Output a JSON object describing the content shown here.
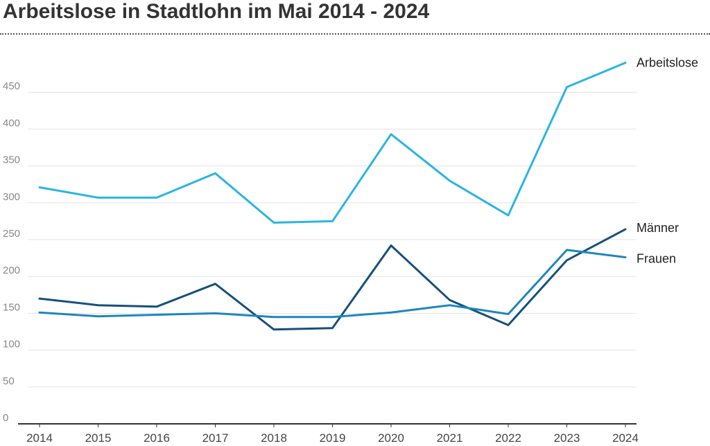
{
  "chart_data": {
    "type": "line",
    "title": "Arbeitslose in Stadtlohn im Mai 2014 - 2024",
    "xlabel": "",
    "ylabel": "",
    "x": [
      "2014",
      "2015",
      "2016",
      "2017",
      "2018",
      "2019",
      "2020",
      "2021",
      "2022",
      "2023",
      "2024"
    ],
    "ylim": [
      0,
      500
    ],
    "yticks": [
      "0",
      "50",
      "100",
      "150",
      "200",
      "250",
      "300",
      "350",
      "400",
      "450"
    ],
    "grid": true,
    "legend": "inline-right",
    "series": [
      {
        "name": "Arbeitslose",
        "color": "#2ab4e3",
        "values": [
          321,
          307,
          307,
          340,
          273,
          275,
          393,
          330,
          283,
          457,
          490
        ]
      },
      {
        "name": "Männer",
        "color": "#174f7c",
        "values": [
          170,
          161,
          159,
          190,
          128,
          130,
          242,
          168,
          134,
          222,
          264
        ]
      },
      {
        "name": "Frauen",
        "color": "#1d86be",
        "values": [
          151,
          146,
          148,
          150,
          145,
          145,
          151,
          161,
          149,
          236,
          226
        ]
      }
    ]
  }
}
